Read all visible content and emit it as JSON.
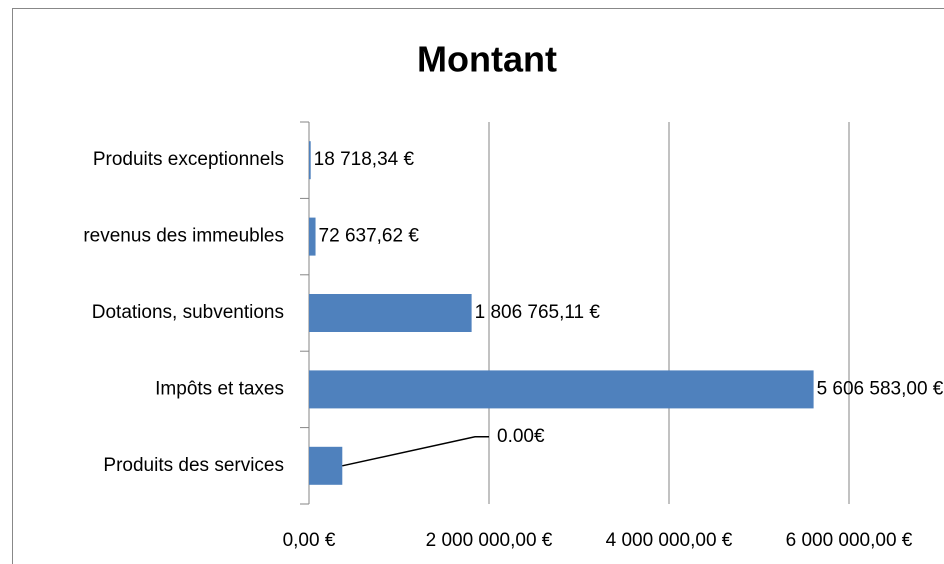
{
  "chart_data": {
    "type": "barh",
    "title": "Montant",
    "categories": [
      "Produits exceptionnels",
      "revenus des immeubles",
      "Dotations, subventions",
      "Impôts et taxes",
      "Produits des services"
    ],
    "values": [
      18718.34,
      72637.62,
      1806765.11,
      5606583.0,
      370000
    ],
    "value_labels": [
      "18 718,34 €",
      "72 637,62 €",
      "1 806 765,11 €",
      "5 606 583,00 €",
      null
    ],
    "annotation": "0.00€",
    "color": "#4f81bd",
    "xlim": [
      0,
      6000000
    ],
    "xticks": [
      {
        "value": 0,
        "label": "0,00 €"
      },
      {
        "value": 2000000,
        "label": "2 000 000,00 €"
      },
      {
        "value": 4000000,
        "label": "4 000 000,00 €"
      },
      {
        "value": 6000000,
        "label": "6 000 000,00 €"
      }
    ],
    "grid": true
  }
}
